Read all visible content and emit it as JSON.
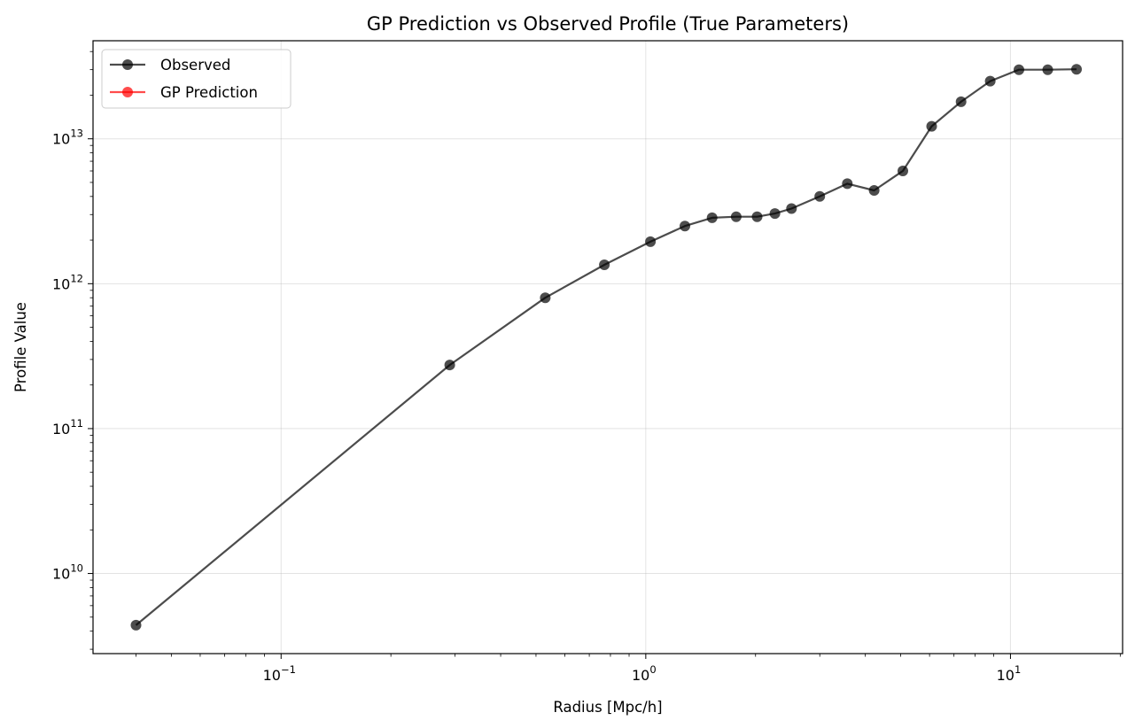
{
  "chart_data": {
    "type": "line",
    "title": "GP Prediction vs Observed Profile (True Parameters)",
    "xlabel": "Radius [Mpc/h]",
    "ylabel": "Profile Value",
    "xscale": "log",
    "yscale": "log",
    "xlim": [
      0.0305,
      20.3
    ],
    "ylim": [
      2800000000.0,
      47500000000000.0
    ],
    "grid": true,
    "legend_position": "top-left",
    "x_ticks": [
      {
        "base": "10",
        "exp": "−1",
        "value": 0.1
      },
      {
        "base": "10",
        "exp": "0",
        "value": 1
      },
      {
        "base": "10",
        "exp": "1",
        "value": 10
      }
    ],
    "y_ticks": [
      {
        "base": "10",
        "exp": "10",
        "value": 10000000000.0
      },
      {
        "base": "10",
        "exp": "11",
        "value": 100000000000.0
      },
      {
        "base": "10",
        "exp": "12",
        "value": 1000000000000.0
      },
      {
        "base": "10",
        "exp": "13",
        "value": 10000000000000.0
      }
    ],
    "series": [
      {
        "name": "Observed",
        "color": "#000000",
        "opacity": 0.7,
        "marker": "circle",
        "x": [
          0.04,
          0.29,
          0.53,
          0.77,
          1.03,
          1.28,
          1.52,
          1.77,
          2.02,
          2.26,
          2.51,
          3.0,
          3.57,
          4.23,
          5.07,
          6.08,
          7.32,
          8.8,
          10.55,
          12.65,
          15.18
        ],
        "y": [
          4400000000.0,
          275000000000.0,
          800000000000.0,
          1350000000000.0,
          1950000000000.0,
          2500000000000.0,
          2850000000000.0,
          2900000000000.0,
          2900000000000.0,
          3050000000000.0,
          3300000000000.0,
          4000000000000.0,
          4900000000000.0,
          4400000000000.0,
          6000000000000.0,
          12200000000000.0,
          18000000000000.0,
          25000000000000.0,
          30000000000000.0,
          30000000000000.0,
          30200000000000.0
        ]
      },
      {
        "name": "GP Prediction",
        "color": "#ff0000",
        "opacity": 0.7,
        "marker": "circle",
        "x": [],
        "y": []
      }
    ]
  }
}
